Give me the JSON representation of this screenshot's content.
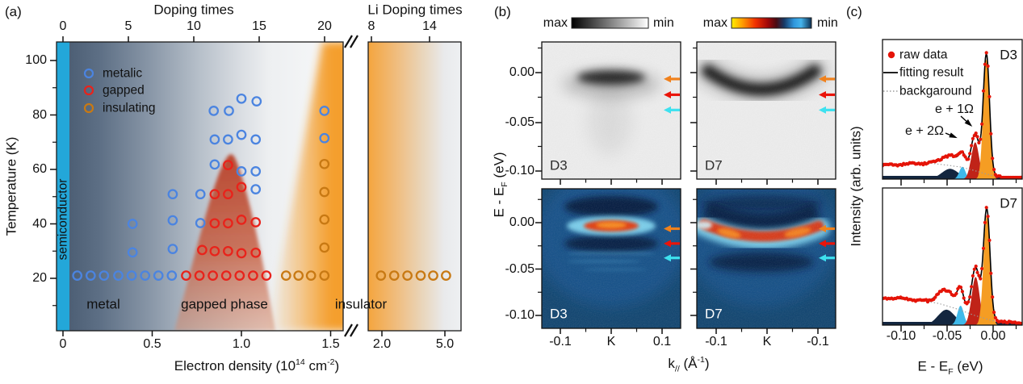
{
  "chart_data": [
    {
      "panel": "a",
      "tag": "(a)",
      "type": "scatter",
      "top_axis": {
        "title": "Doping times",
        "tick_labels": [
          "0",
          "5",
          "10",
          "15",
          "20"
        ],
        "li_title": "Li Doping times",
        "li_tick_labels": [
          "8",
          "14"
        ]
      },
      "x_axis": {
        "label_segments": [
          {
            "t": "Electron density (10"
          },
          {
            "t": "14",
            "sup": true
          },
          {
            "t": " cm"
          },
          {
            "t": "-2",
            "sup": true
          },
          {
            "t": ")"
          }
        ],
        "tick_labels": [
          "0",
          "0.5",
          "1.0",
          "1.5"
        ],
        "tick_values": [
          0,
          0.5,
          1.0,
          1.5
        ],
        "li_tick_labels": [
          "2.0",
          "5.0"
        ],
        "break_symbol": "//",
        "range_main": [
          -0.04,
          1.57
        ],
        "range_li": [
          1.9,
          5.5
        ]
      },
      "y_axis": {
        "label": "Temperature (K)",
        "tick_labels": [
          "100",
          "80",
          "60",
          "40",
          "20"
        ],
        "tick_values": [
          100,
          80,
          60,
          40,
          20
        ],
        "range": [
          0,
          106
        ]
      },
      "legend": [
        {
          "label": "metalic",
          "color": "#4b84e0"
        },
        {
          "label": "gapped",
          "color": "#e8231b"
        },
        {
          "label": "insulating",
          "color": "#c87913"
        }
      ],
      "region_labels": {
        "semiconductor": "semiconductor",
        "metal": "metal",
        "gapped": "gapped phase",
        "insulator": "insulator"
      },
      "series": {
        "metalic": [
          [
            0.08,
            21
          ],
          [
            0.155,
            21
          ],
          [
            0.23,
            21
          ],
          [
            0.31,
            21
          ],
          [
            0.385,
            21
          ],
          [
            0.46,
            21
          ],
          [
            0.535,
            21
          ],
          [
            0.61,
            21
          ],
          [
            0.39,
            29.5
          ],
          [
            0.615,
            30.8
          ],
          [
            0.39,
            40
          ],
          [
            0.615,
            41.3
          ],
          [
            0.77,
            40.3
          ],
          [
            0.615,
            50.9
          ],
          [
            0.77,
            50.9
          ],
          [
            1.08,
            52.7
          ],
          [
            0.85,
            61.8
          ],
          [
            1.0,
            59.3
          ],
          [
            1.08,
            59.3
          ],
          [
            0.85,
            71
          ],
          [
            0.925,
            71
          ],
          [
            1.0,
            72.7
          ],
          [
            1.08,
            71
          ],
          [
            0.845,
            81.5
          ],
          [
            0.93,
            81.5
          ],
          [
            1.465,
            81.5
          ],
          [
            1.0,
            86
          ],
          [
            1.085,
            85
          ],
          [
            1.465,
            71.5
          ]
        ],
        "gapped": [
          [
            0.69,
            21
          ],
          [
            0.765,
            21
          ],
          [
            0.84,
            21
          ],
          [
            0.915,
            21
          ],
          [
            0.99,
            21
          ],
          [
            1.065,
            21
          ],
          [
            1.14,
            21
          ],
          [
            0.78,
            30.4
          ],
          [
            0.85,
            30
          ],
          [
            0.925,
            30
          ],
          [
            1.0,
            29.2
          ],
          [
            1.08,
            29.4
          ],
          [
            0.85,
            40.2
          ],
          [
            0.925,
            40.2
          ],
          [
            1.0,
            41.5
          ],
          [
            1.08,
            40.6
          ],
          [
            0.85,
            50.9
          ],
          [
            0.925,
            50.9
          ],
          [
            1.0,
            53.5
          ],
          [
            0.925,
            61.6
          ]
        ],
        "insulating": [
          [
            1.25,
            21
          ],
          [
            1.32,
            21
          ],
          [
            1.39,
            21
          ],
          [
            1.465,
            21
          ],
          [
            1.465,
            31.3
          ],
          [
            1.465,
            41.6
          ],
          [
            1.465,
            51.7
          ],
          [
            1.465,
            62
          ]
        ],
        "insulating_li_fracs": [
          0.137,
          0.28,
          0.423,
          0.565,
          0.7,
          0.838
        ]
      },
      "colors": {
        "semiconductor_bar": "#23a7d9",
        "dome": "#b84028",
        "insulator_wedge": "#f49c28"
      }
    },
    {
      "panel": "b",
      "tag": "(b)",
      "type": "heatmap",
      "colorbar_gray": {
        "max": "max",
        "min": "min"
      },
      "colorbar_jet": {
        "max": "max",
        "min": "min"
      },
      "y_axis": {
        "label_segments": [
          {
            "t": "E - E"
          },
          {
            "t": "F",
            "sub": true
          },
          {
            "t": " (eV)"
          }
        ],
        "tick_labels": [
          "0.00",
          "-0.05",
          "-0.10"
        ]
      },
      "x_axis": {
        "label_segments": [
          {
            "t": "k"
          },
          {
            "t": "//",
            "sub": true
          },
          {
            "t": " (Å"
          },
          {
            "t": "-1",
            "sup": true
          },
          {
            "t": ")"
          }
        ],
        "d3_tick_labels": [
          "-0.1",
          "K",
          "0.1"
        ],
        "d7_tick_labels": [
          "-0.1",
          "K",
          "-0.1"
        ]
      },
      "images": [
        {
          "id": "D3",
          "row": "top",
          "style": "grayscale",
          "feature": "flat dark band just below EF"
        },
        {
          "id": "D7",
          "row": "top",
          "style": "grayscale",
          "feature": "dark downward crescent band"
        },
        {
          "id": "D3",
          "row": "bottom",
          "style": "color",
          "feature": "bright flat band just below EF"
        },
        {
          "id": "D7",
          "row": "bottom",
          "style": "color",
          "feature": "bright curved band"
        }
      ],
      "arrows": {
        "colors": [
          "#f0811c",
          "#ea1409",
          "#3ee1ef"
        ],
        "energies_eV": [
          -0.0065,
          -0.0225,
          -0.038
        ]
      }
    },
    {
      "panel": "c",
      "tag": "(c)",
      "type": "line",
      "legend": [
        {
          "label": "raw data",
          "symbol": "dot",
          "color": "#e51408"
        },
        {
          "label": "fitting result",
          "symbol": "line",
          "color": "#000000"
        },
        {
          "label": "backgaround",
          "symbol": "dotted",
          "color": "#9b9b9b"
        }
      ],
      "annotations": [
        {
          "text": "e + 1Ω"
        },
        {
          "text": "e + 2Ω"
        }
      ],
      "y_axis": {
        "label": "Intensity (arb. units)"
      },
      "x_axis": {
        "label_segments": [
          {
            "t": "E - E"
          },
          {
            "t": "F",
            "sub": true
          },
          {
            "t": " (eV)"
          }
        ],
        "tick_labels": [
          "-0.10",
          "-0.05",
          "0.00"
        ],
        "range_eV": [
          -0.121,
          0.032
        ]
      },
      "plots": [
        {
          "label": "D3",
          "components": [
            {
              "name": "broad-background-peak",
              "color": "#13263f",
              "center": -0.047,
              "width": 0.013,
              "amp": 0.075
            },
            {
              "name": "e-plus-2-omega",
              "color": "#3fb9ea",
              "center": -0.0335,
              "width": 0.0048,
              "amp": 0.09
            },
            {
              "name": "e-plus-1-omega",
              "color": "#c02318",
              "center": -0.0195,
              "width": 0.006,
              "amp": 0.27
            },
            {
              "name": "main-peak",
              "color": "#f59d23",
              "center": -0.0072,
              "width": 0.0048,
              "amp": 0.88
            }
          ],
          "background": [
            [
              -0.121,
              0.1
            ],
            [
              -0.09,
              0.112
            ],
            [
              -0.07,
              0.118
            ],
            [
              -0.05,
              0.102
            ],
            [
              -0.035,
              0.088
            ],
            [
              -0.02,
              0.062
            ],
            [
              -0.01,
              0.042
            ],
            [
              0,
              0.025
            ],
            [
              0.01,
              0.012
            ],
            [
              0.032,
              0.006
            ]
          ],
          "noise_amp": 0.012
        },
        {
          "label": "D7",
          "components": [
            {
              "name": "broad-background-peak",
              "color": "#13263f",
              "center": -0.051,
              "width": 0.013,
              "amp": 0.115
            },
            {
              "name": "e-plus-2-omega",
              "color": "#3fb9ea",
              "center": -0.0355,
              "width": 0.005,
              "amp": 0.145
            },
            {
              "name": "e-plus-1-omega",
              "color": "#c02318",
              "center": -0.019,
              "width": 0.0062,
              "amp": 0.36
            },
            {
              "name": "main-peak",
              "color": "#f59d23",
              "center": -0.0068,
              "width": 0.005,
              "amp": 0.82
            }
          ],
          "background": [
            [
              -0.121,
              0.205
            ],
            [
              -0.09,
              0.193
            ],
            [
              -0.06,
              0.163
            ],
            [
              -0.04,
              0.122
            ],
            [
              -0.02,
              0.072
            ],
            [
              0,
              0.032
            ],
            [
              0.032,
              0.012
            ]
          ],
          "noise_amp": 0.011
        }
      ]
    }
  ]
}
